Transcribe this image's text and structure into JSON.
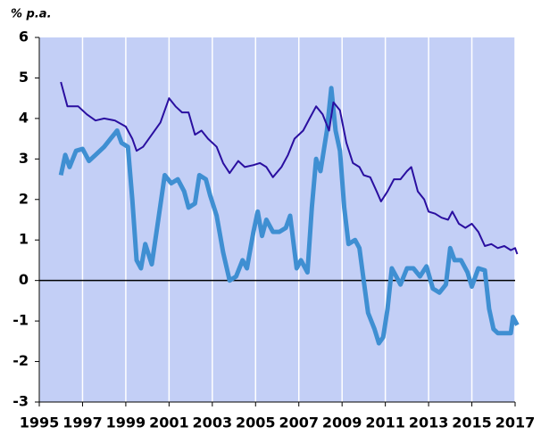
{
  "chart_data": {
    "type": "line",
    "y_label": "% p.a.",
    "xlim": [
      1995,
      2017
    ],
    "xticks": [
      1995,
      1997,
      1999,
      2001,
      2003,
      2005,
      2007,
      2009,
      2011,
      2013,
      2015,
      2017
    ],
    "ylim": [
      -3,
      6
    ],
    "yticks": [
      -3,
      -2,
      -1,
      0,
      1,
      2,
      3,
      4,
      5,
      6
    ],
    "grid": true,
    "background": "#c3cff6",
    "series": [
      {
        "color": "#2a0fa0",
        "width": 2,
        "x": [
          1996.0,
          1996.3,
          1996.8,
          1997.2,
          1997.6,
          1998.0,
          1998.5,
          1999.0,
          1999.3,
          1999.5,
          1999.8,
          2000.2,
          2000.6,
          2001.0,
          2001.3,
          2001.6,
          2001.9,
          2002.2,
          2002.5,
          2002.8,
          2003.2,
          2003.5,
          2003.8,
          2004.2,
          2004.5,
          2004.9,
          2005.2,
          2005.5,
          2005.8,
          2006.2,
          2006.5,
          2006.8,
          2007.2,
          2007.5,
          2007.8,
          2008.1,
          2008.4,
          2008.6,
          2008.9,
          2009.2,
          2009.5,
          2009.8,
          2010.0,
          2010.3,
          2010.6,
          2010.8,
          2011.1,
          2011.4,
          2011.7,
          2012.0,
          2012.2,
          2012.5,
          2012.8,
          2013.0,
          2013.3,
          2013.6,
          2013.9,
          2014.1,
          2014.4,
          2014.7,
          2015.0,
          2015.3,
          2015.6,
          2015.9,
          2016.2,
          2016.5,
          2016.8,
          2017.0,
          2017.1
        ],
        "values": [
          4.9,
          4.3,
          4.3,
          4.1,
          3.95,
          4.0,
          3.95,
          3.8,
          3.5,
          3.2,
          3.3,
          3.6,
          3.9,
          4.5,
          4.3,
          4.15,
          4.15,
          3.6,
          3.7,
          3.5,
          3.3,
          2.9,
          2.65,
          2.95,
          2.8,
          2.85,
          2.9,
          2.8,
          2.55,
          2.8,
          3.1,
          3.5,
          3.7,
          4.0,
          4.3,
          4.1,
          3.7,
          4.4,
          4.2,
          3.4,
          2.9,
          2.8,
          2.6,
          2.55,
          2.2,
          1.95,
          2.2,
          2.5,
          2.5,
          2.7,
          2.8,
          2.2,
          2.0,
          1.7,
          1.65,
          1.55,
          1.5,
          1.7,
          1.4,
          1.3,
          1.4,
          1.2,
          0.85,
          0.9,
          0.8,
          0.85,
          0.75,
          0.8,
          0.65
        ]
      },
      {
        "color": "#3f8fd2",
        "width": 5,
        "x": [
          1996.0,
          1996.2,
          1996.4,
          1996.7,
          1997.0,
          1997.3,
          1997.6,
          1998.0,
          1998.3,
          1998.6,
          1998.8,
          1999.1,
          1999.3,
          1999.5,
          1999.7,
          1999.9,
          2000.2,
          2000.5,
          2000.8,
          2001.1,
          2001.4,
          2001.7,
          2001.9,
          2002.2,
          2002.4,
          2002.7,
          2002.9,
          2003.2,
          2003.5,
          2003.8,
          2004.1,
          2004.4,
          2004.6,
          2004.9,
          2005.1,
          2005.3,
          2005.5,
          2005.8,
          2006.1,
          2006.4,
          2006.6,
          2006.9,
          2007.1,
          2007.4,
          2007.6,
          2007.8,
          2008.0,
          2008.3,
          2008.5,
          2008.7,
          2008.9,
          2009.1,
          2009.3,
          2009.6,
          2009.8,
          2010.0,
          2010.2,
          2010.5,
          2010.7,
          2010.9,
          2011.1,
          2011.3,
          2011.5,
          2011.7,
          2012.0,
          2012.3,
          2012.6,
          2012.9,
          2013.2,
          2013.5,
          2013.8,
          2014.0,
          2014.2,
          2014.5,
          2014.8,
          2015.0,
          2015.3,
          2015.6,
          2015.8,
          2016.0,
          2016.2,
          2016.5,
          2016.8,
          2016.9,
          2017.1
        ],
        "values": [
          2.6,
          3.1,
          2.8,
          3.2,
          3.25,
          2.95,
          3.1,
          3.3,
          3.5,
          3.7,
          3.4,
          3.3,
          2.0,
          0.5,
          0.3,
          0.9,
          0.4,
          1.5,
          2.6,
          2.4,
          2.5,
          2.2,
          1.8,
          1.9,
          2.6,
          2.5,
          2.1,
          1.6,
          0.7,
          0.0,
          0.1,
          0.5,
          0.3,
          1.2,
          1.7,
          1.1,
          1.5,
          1.2,
          1.2,
          1.3,
          1.6,
          0.3,
          0.5,
          0.2,
          1.8,
          3.0,
          2.7,
          3.7,
          4.75,
          3.7,
          3.2,
          1.8,
          0.9,
          1.0,
          0.8,
          0.0,
          -0.8,
          -1.2,
          -1.55,
          -1.4,
          -0.7,
          0.3,
          0.1,
          -0.1,
          0.3,
          0.3,
          0.1,
          0.35,
          -0.2,
          -0.3,
          -0.1,
          0.8,
          0.5,
          0.5,
          0.2,
          -0.15,
          0.3,
          0.25,
          -0.7,
          -1.2,
          -1.3,
          -1.3,
          -1.3,
          -0.9,
          -1.1
        ]
      }
    ]
  }
}
